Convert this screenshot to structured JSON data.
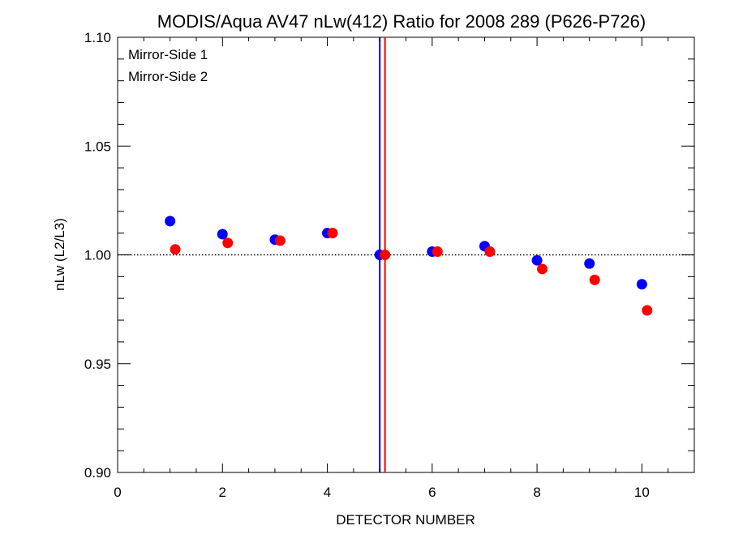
{
  "chart_data": {
    "type": "scatter",
    "title": "MODIS/Aqua AV47 nLw(412) Ratio for 2008 289 (P626-P726)",
    "xlabel": "DETECTOR NUMBER",
    "ylabel": "nLw (L2/L3)",
    "xlim": [
      0,
      11
    ],
    "ylim": [
      0.9,
      1.1
    ],
    "x_ticks": [
      0,
      2,
      4,
      6,
      8,
      10
    ],
    "x_tick_labels": [
      "0",
      "2",
      "4",
      "6",
      "8",
      "10"
    ],
    "y_ticks": [
      0.9,
      0.95,
      1.0,
      1.05,
      1.1
    ],
    "y_tick_labels": [
      "0.90",
      "0.95",
      "1.00",
      "1.05",
      "1.10"
    ],
    "grid": false,
    "legend_position": "top-left",
    "reference_line_y": 1.0,
    "vertical_lines": [
      {
        "x": 5.0,
        "color": "#0000ff"
      },
      {
        "x": 5.1,
        "color": "#ff0000"
      }
    ],
    "series": [
      {
        "name": "Mirror-Side 1",
        "color": "#0000ff",
        "x": [
          1,
          2,
          3,
          4,
          5,
          6,
          7,
          8,
          9,
          10
        ],
        "y": [
          1.0155,
          1.0095,
          1.007,
          1.01,
          1.0,
          1.0015,
          1.004,
          0.9975,
          0.996,
          0.9865
        ]
      },
      {
        "name": "Mirror-Side 2",
        "color": "#ff0000",
        "x": [
          1.1,
          2.1,
          3.1,
          4.1,
          5.1,
          6.1,
          7.1,
          8.1,
          9.1,
          10.1
        ],
        "y": [
          1.0025,
          1.0055,
          1.0065,
          1.01,
          1.0,
          1.0015,
          1.0015,
          0.9935,
          0.9885,
          0.9745
        ]
      }
    ]
  }
}
